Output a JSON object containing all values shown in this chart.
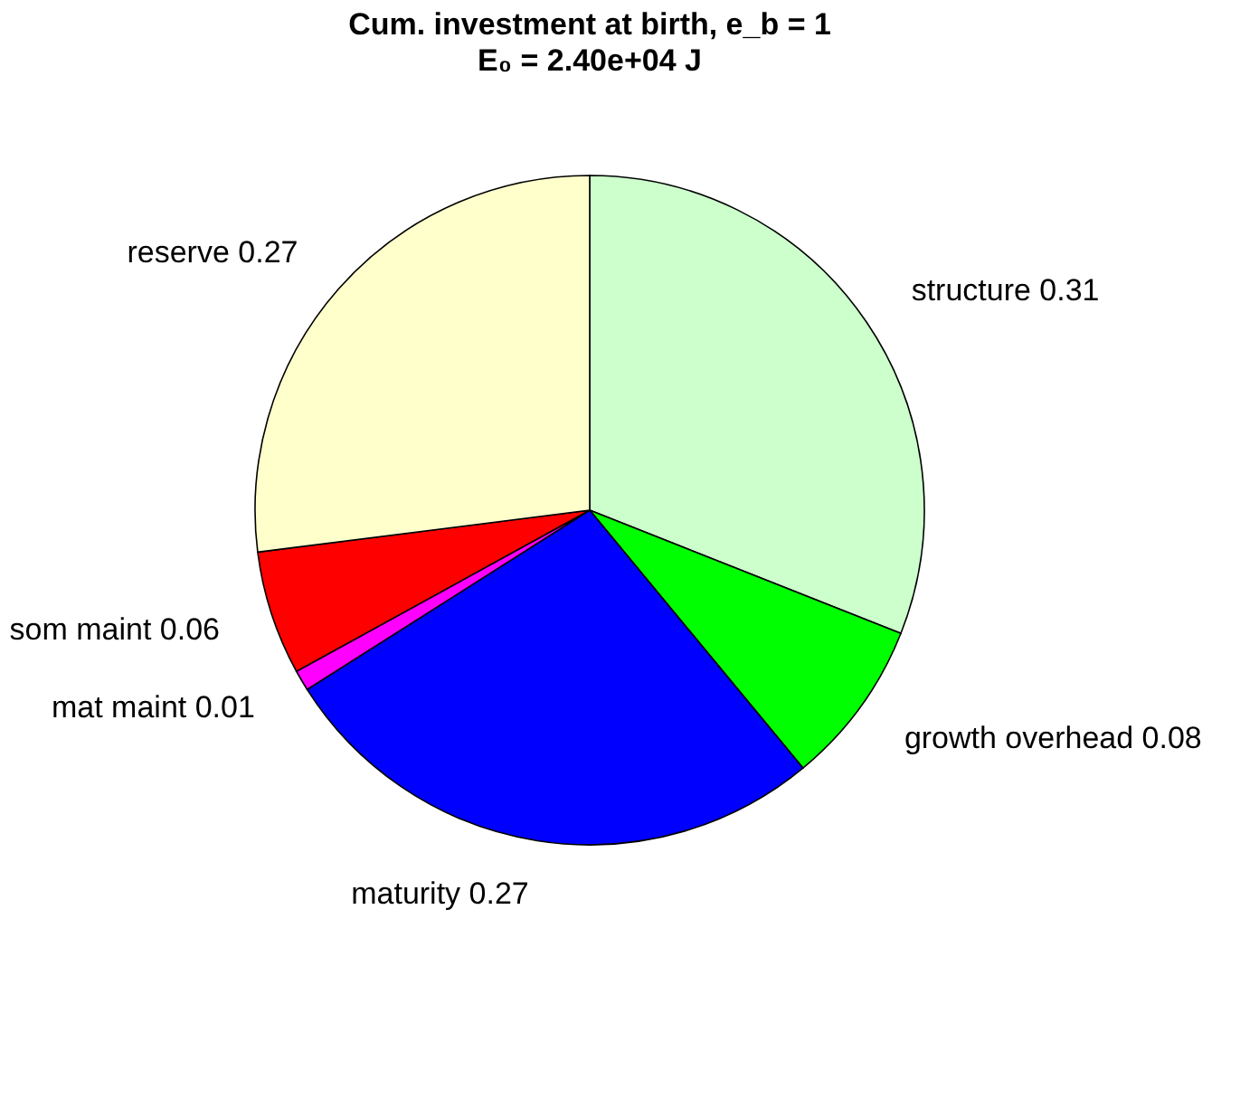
{
  "chart_data": {
    "type": "pie",
    "title": "Cum. investment at birth, e_b = 1",
    "subtitle": "E₀ = 2.40e+04 J",
    "categories": [
      "structure 0.31",
      "growth overhead 0.08",
      "maturity 0.27",
      "mat maint 0.01",
      "som maint 0.06",
      "reserve 0.27"
    ],
    "values": [
      0.31,
      0.08,
      0.27,
      0.01,
      0.06,
      0.27
    ],
    "colors": [
      "#ccffcc",
      "#00ff00",
      "#0000ff",
      "#ff00ff",
      "#ff0000",
      "#ffffcc"
    ],
    "legend": false
  }
}
